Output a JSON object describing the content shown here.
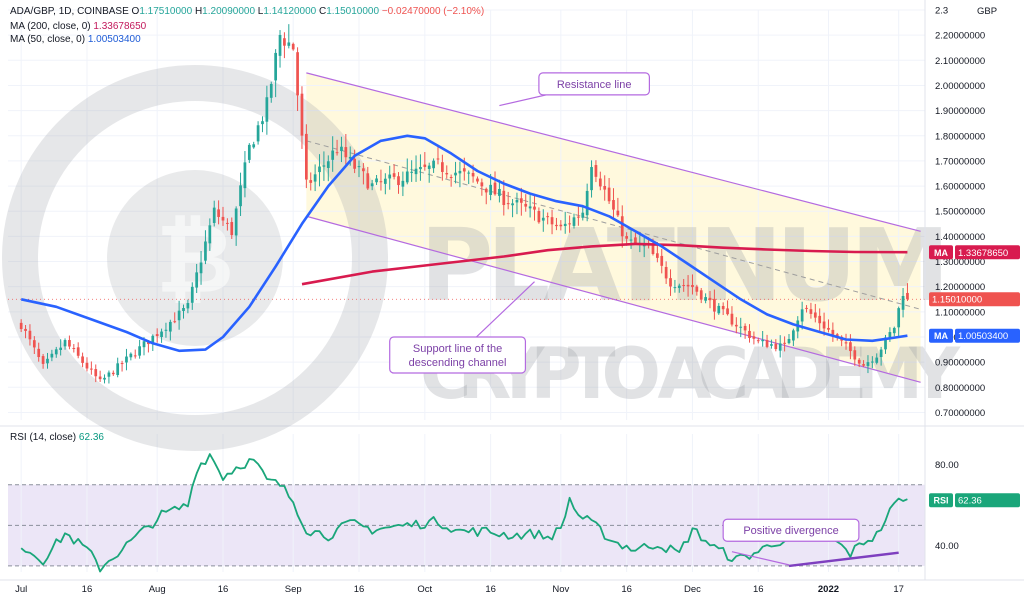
{
  "header": {
    "symbol": "ADA/GBP, 1D, COINBASE",
    "open_label": "O",
    "open": "1.17510000",
    "high_label": "H",
    "high": "1.20090000",
    "low_label": "L",
    "low": "1.14120000",
    "close_label": "C",
    "close": "1.15010000",
    "change": "−0.02470000 (−2.10%)",
    "ma200_label": "MA (200, close, 0)",
    "ma200_value": "1.33678650",
    "ma50_label": "MA (50, close, 0)",
    "ma50_value": "1.00503400",
    "rsi_label": "RSI (14, close)",
    "rsi_value": "62.36"
  },
  "watermark": {
    "line1": "PLATINUM",
    "line2": "CRYPTO ACADEMY"
  },
  "chart_data": {
    "type": "candlestick",
    "currency": "GBP",
    "price_axis": {
      "ylim": [
        0.67,
        2.3
      ],
      "ticks": [
        "0.70000000",
        "0.80000000",
        "0.90000000",
        "1.00000000",
        "1.10000000",
        "1.20000000",
        "1.30000000",
        "1.40000000",
        "1.50000000",
        "1.60000000",
        "1.70000000",
        "1.80000000",
        "1.90000000",
        "2.00000000",
        "2.10000000",
        "2.20000000",
        "2.3"
      ],
      "top_label": "2.3",
      "unit_label": "GBP"
    },
    "rsi_axis": {
      "ylim": [
        27,
        95
      ],
      "ticks": [
        "40.00",
        "80.00"
      ],
      "upper_band": 70,
      "lower_band": 30,
      "mid": 50
    },
    "x_axis": {
      "labels": [
        "Jul",
        "16",
        "Aug",
        "16",
        "Sep",
        "16",
        "Oct",
        "16",
        "Nov",
        "16",
        "Dec",
        "16",
        "2022",
        "17"
      ],
      "label_days": [
        0,
        15,
        31,
        46,
        62,
        77,
        92,
        107,
        123,
        138,
        153,
        168,
        184,
        200
      ],
      "bold_labels": [
        "2022"
      ]
    },
    "price_key": [
      [
        0,
        1.05
      ],
      [
        5,
        0.88
      ],
      [
        10,
        0.98
      ],
      [
        18,
        0.82
      ],
      [
        28,
        0.97
      ],
      [
        38,
        1.12
      ],
      [
        44,
        1.5
      ],
      [
        48,
        1.42
      ],
      [
        52,
        1.75
      ],
      [
        56,
        1.92
      ],
      [
        59,
        2.2
      ],
      [
        62,
        2.15
      ],
      [
        65,
        1.6
      ],
      [
        72,
        1.75
      ],
      [
        80,
        1.6
      ],
      [
        88,
        1.64
      ],
      [
        95,
        1.68
      ],
      [
        103,
        1.63
      ],
      [
        110,
        1.55
      ],
      [
        116,
        1.5
      ],
      [
        123,
        1.43
      ],
      [
        128,
        1.5
      ],
      [
        130,
        1.7
      ],
      [
        133,
        1.58
      ],
      [
        138,
        1.38
      ],
      [
        143,
        1.35
      ],
      [
        148,
        1.22
      ],
      [
        153,
        1.2
      ],
      [
        158,
        1.12
      ],
      [
        163,
        1.05
      ],
      [
        168,
        0.98
      ],
      [
        174,
        0.96
      ],
      [
        178,
        1.12
      ],
      [
        182,
        1.06
      ],
      [
        188,
        0.96
      ],
      [
        192,
        0.89
      ],
      [
        195,
        0.93
      ],
      [
        199,
        1.04
      ],
      [
        201,
        1.18
      ],
      [
        202,
        1.15
      ]
    ],
    "rsi_key": [
      [
        0,
        40
      ],
      [
        5,
        33
      ],
      [
        10,
        46
      ],
      [
        15,
        38
      ],
      [
        18,
        29
      ],
      [
        25,
        42
      ],
      [
        32,
        55
      ],
      [
        38,
        60
      ],
      [
        40,
        78
      ],
      [
        43,
        85
      ],
      [
        46,
        74
      ],
      [
        50,
        80
      ],
      [
        53,
        82
      ],
      [
        56,
        72
      ],
      [
        59,
        70
      ],
      [
        62,
        62
      ],
      [
        65,
        48
      ],
      [
        70,
        45
      ],
      [
        75,
        51
      ],
      [
        80,
        48
      ],
      [
        88,
        50
      ],
      [
        95,
        52
      ],
      [
        100,
        47
      ],
      [
        106,
        47
      ],
      [
        112,
        45
      ],
      [
        117,
        46
      ],
      [
        120,
        44
      ],
      [
        123,
        48
      ],
      [
        125,
        63
      ],
      [
        127,
        55
      ],
      [
        130,
        51
      ],
      [
        135,
        42
      ],
      [
        140,
        38
      ],
      [
        145,
        41
      ],
      [
        150,
        36
      ],
      [
        153,
        48
      ],
      [
        158,
        39
      ],
      [
        163,
        33
      ],
      [
        168,
        37
      ],
      [
        172,
        42
      ],
      [
        176,
        43
      ],
      [
        178,
        50
      ],
      [
        181,
        45
      ],
      [
        185,
        43
      ],
      [
        189,
        36
      ],
      [
        192,
        42
      ],
      [
        195,
        45
      ],
      [
        197,
        53
      ],
      [
        199,
        60
      ],
      [
        201,
        64
      ],
      [
        202,
        62
      ]
    ],
    "ma200_key": [
      [
        64,
        1.21
      ],
      [
        80,
        1.26
      ],
      [
        95,
        1.29
      ],
      [
        110,
        1.32
      ],
      [
        120,
        1.345
      ],
      [
        130,
        1.36
      ],
      [
        140,
        1.37
      ],
      [
        150,
        1.365
      ],
      [
        160,
        1.355
      ],
      [
        170,
        1.348
      ],
      [
        180,
        1.342
      ],
      [
        190,
        1.338
      ],
      [
        202,
        1.337
      ]
    ],
    "ma50_key": [
      [
        0,
        1.15
      ],
      [
        8,
        1.12
      ],
      [
        16,
        1.07
      ],
      [
        24,
        1.02
      ],
      [
        30,
        0.975
      ],
      [
        36,
        0.945
      ],
      [
        42,
        0.95
      ],
      [
        46,
        1.0
      ],
      [
        52,
        1.12
      ],
      [
        58,
        1.28
      ],
      [
        64,
        1.45
      ],
      [
        70,
        1.6
      ],
      [
        76,
        1.72
      ],
      [
        82,
        1.78
      ],
      [
        88,
        1.8
      ],
      [
        92,
        1.79
      ],
      [
        98,
        1.73
      ],
      [
        104,
        1.66
      ],
      [
        110,
        1.61
      ],
      [
        116,
        1.57
      ],
      [
        122,
        1.54
      ],
      [
        128,
        1.52
      ],
      [
        134,
        1.48
      ],
      [
        140,
        1.42
      ],
      [
        146,
        1.36
      ],
      [
        152,
        1.29
      ],
      [
        158,
        1.22
      ],
      [
        164,
        1.15
      ],
      [
        170,
        1.09
      ],
      [
        176,
        1.05
      ],
      [
        182,
        1.02
      ],
      [
        188,
        0.99
      ],
      [
        194,
        0.985
      ],
      [
        200,
        1.0
      ],
      [
        202,
        1.005
      ]
    ],
    "current_price": {
      "value": 1.1501,
      "label": "1.15010000"
    },
    "ma200_marker": {
      "value": 1.3368,
      "tag": "MA",
      "label": "1.33678650"
    },
    "ma50_marker": {
      "value": 1.005,
      "tag": "MA",
      "label": "1.00503400"
    },
    "rsi_marker": {
      "value": 62.36,
      "tag": "RSI",
      "label": "62.36"
    },
    "channel": {
      "upper": [
        [
          65,
          2.05
        ],
        [
          205,
          1.42
        ]
      ],
      "lower": [
        [
          65,
          1.48
        ],
        [
          205,
          0.82
        ]
      ],
      "mid": [
        [
          65,
          1.78
        ],
        [
          205,
          1.11
        ]
      ]
    },
    "rsi_divergence_line": [
      [
        175,
        30
      ],
      [
        200,
        36.5
      ]
    ],
    "rsi_divergence_arrow": [
      [
        162,
        37
      ],
      [
        175,
        30.5
      ]
    ],
    "annotations": [
      {
        "text": "Resistance line",
        "box_day": 118,
        "box_price": 2.05,
        "arrow_to_day": 109,
        "arrow_to_price": 1.92
      },
      {
        "text": "Support line of the descending channel",
        "lines": [
          "Support line of the",
          "descending channel"
        ],
        "box_day": 84,
        "box_price": 1.0,
        "arrow_to_day": 117,
        "arrow_to_price": 1.22
      },
      {
        "text": "Positive divergence",
        "box_day": 160,
        "box_rsi": 53,
        "pane": "rsi"
      }
    ],
    "colors": {
      "up": "#26a69a",
      "down": "#ef5350",
      "ma200": "#d81b4f",
      "ma50": "#2962ff",
      "rsi": "#1aa67a",
      "channel": "#b46ae0",
      "channel_fill": "#fff9dd",
      "rsi_band": "#ece6f7",
      "divergence": "#7e3fbf",
      "axis_text": "#131722"
    }
  }
}
